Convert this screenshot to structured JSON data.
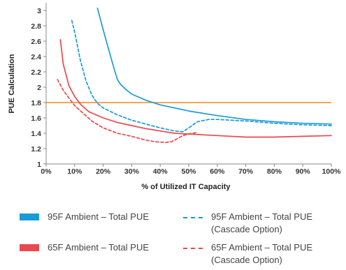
{
  "chart_data": {
    "type": "line",
    "title": "",
    "xlabel": "% of Utilized IT Capacity",
    "ylabel": "PUE Calculation",
    "xlim": [
      0,
      100
    ],
    "ylim": [
      1,
      3.1
    ],
    "x_ticks": [
      0,
      10,
      20,
      30,
      40,
      50,
      60,
      70,
      80,
      90,
      100
    ],
    "x_tick_labels": [
      "0%",
      "10%",
      "20%",
      "30%",
      "40%",
      "50%",
      "60%",
      "70%",
      "80%",
      "90%",
      "100%"
    ],
    "y_ticks": [
      1,
      1.2,
      1.4,
      1.6,
      1.8,
      2,
      2.2,
      2.4,
      2.6,
      2.8,
      3
    ],
    "y_tick_labels": [
      "1",
      "1.2",
      "1.4",
      "1.6",
      "1.8",
      "2",
      "2.2",
      "2.4",
      "2.6",
      "2.8",
      "3"
    ],
    "grid": false,
    "legend_placement": "bottom",
    "reference_line": {
      "y": 1.8,
      "color": "#f28a1c"
    },
    "series": [
      {
        "name": "95F Ambient – Total PUE",
        "style": "solid",
        "color": "#1a9bd7",
        "x": [
          18,
          20,
          22,
          24,
          25,
          26,
          28,
          30,
          35,
          40,
          45,
          50,
          60,
          70,
          80,
          90,
          100
        ],
        "y": [
          3.03,
          2.75,
          2.48,
          2.22,
          2.1,
          2.04,
          1.97,
          1.91,
          1.83,
          1.77,
          1.73,
          1.69,
          1.63,
          1.58,
          1.55,
          1.53,
          1.52
        ]
      },
      {
        "name": "95F Ambient – Total PUE\n(Cascade Option)",
        "style": "dashed",
        "color": "#1a9bd7",
        "x": [
          9,
          10,
          12,
          14,
          16,
          18,
          20,
          25,
          30,
          35,
          40,
          45,
          48,
          50,
          53,
          57,
          60,
          70,
          80,
          90,
          100
        ],
        "y": [
          2.87,
          2.72,
          2.35,
          2.08,
          1.9,
          1.79,
          1.73,
          1.64,
          1.57,
          1.52,
          1.47,
          1.43,
          1.42,
          1.47,
          1.55,
          1.58,
          1.58,
          1.56,
          1.53,
          1.51,
          1.5
        ]
      },
      {
        "name": "65F Ambient – Total PUE",
        "style": "solid",
        "color": "#e9484f",
        "x": [
          5,
          6,
          8,
          10,
          12,
          15,
          20,
          25,
          30,
          35,
          40,
          45,
          50,
          60,
          70,
          80,
          90,
          100
        ],
        "y": [
          2.62,
          2.3,
          2.02,
          1.88,
          1.78,
          1.68,
          1.6,
          1.54,
          1.5,
          1.46,
          1.43,
          1.4,
          1.39,
          1.37,
          1.35,
          1.35,
          1.36,
          1.37
        ]
      },
      {
        "name": "65F Ambient – Total PUE\n(Cascade Option)",
        "style": "dashed",
        "color": "#e9484f",
        "x": [
          4,
          6,
          8,
          10,
          13,
          16,
          20,
          25,
          30,
          35,
          38,
          42,
          44,
          46,
          48,
          50,
          53
        ],
        "y": [
          2.1,
          1.96,
          1.86,
          1.76,
          1.66,
          1.56,
          1.47,
          1.4,
          1.36,
          1.31,
          1.29,
          1.28,
          1.29,
          1.33,
          1.37,
          1.39,
          1.41
        ]
      }
    ]
  }
}
